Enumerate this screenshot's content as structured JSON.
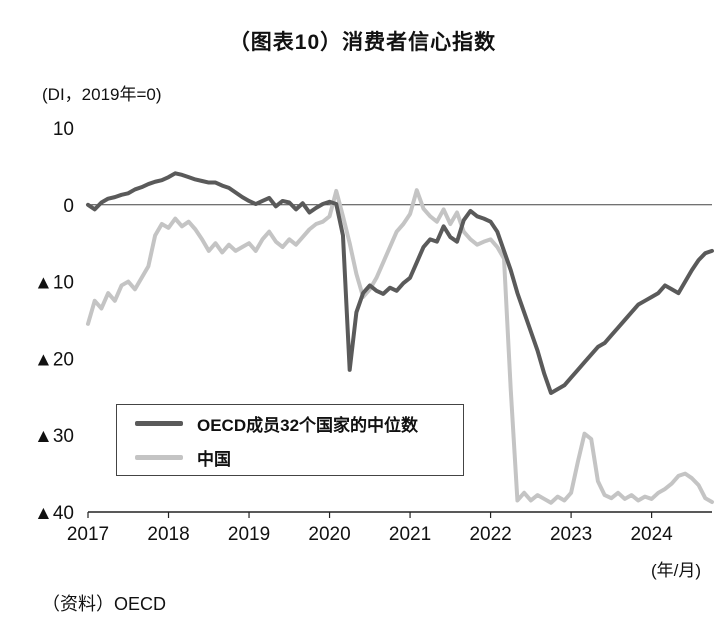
{
  "title": "（图表10）消费者信心指数",
  "y_axis_unit_label": "(DI，2019年=0)",
  "x_axis_unit_label": "(年/月)",
  "source": "（资料）OECD",
  "colors": {
    "oecd_line": "#5a5a5a",
    "china_line": "#c4c4c4",
    "axis": "#222222",
    "zero_line": "#444444",
    "text": "#111111"
  },
  "chart_data": {
    "type": "line",
    "title": "（图表10）消费者信心指数",
    "ylabel": "(DI，2019年=0)",
    "xlabel": "(年/月)",
    "x_frequency": "monthly",
    "x_range": "2017-01 to 2024-10",
    "ylim": [
      -40,
      10
    ],
    "grid": false,
    "zero_line": true,
    "legend_position": "lower-left box",
    "y_ticks": [
      {
        "value": 10,
        "label": "10"
      },
      {
        "value": 0,
        "label": "0"
      },
      {
        "value": -10,
        "label": "▲10"
      },
      {
        "value": -20,
        "label": "▲20"
      },
      {
        "value": -30,
        "label": "▲30"
      },
      {
        "value": -40,
        "label": "▲40"
      }
    ],
    "x_ticks": [
      {
        "label": "2017",
        "month_index": 0
      },
      {
        "label": "2018",
        "month_index": 12
      },
      {
        "label": "2019",
        "month_index": 24
      },
      {
        "label": "2020",
        "month_index": 36
      },
      {
        "label": "2021",
        "month_index": 48
      },
      {
        "label": "2022",
        "month_index": 60
      },
      {
        "label": "2023",
        "month_index": 72
      },
      {
        "label": "2024",
        "month_index": 84
      }
    ],
    "series": [
      {
        "name": "OECD成员32个国家的中位数",
        "color": "#5a5a5a",
        "data_name": "oecd-line",
        "values": [
          0.0,
          -0.6,
          0.3,
          0.8,
          1.0,
          1.3,
          1.5,
          2.0,
          2.3,
          2.7,
          3.0,
          3.2,
          3.6,
          4.1,
          3.9,
          3.6,
          3.3,
          3.1,
          2.9,
          2.9,
          2.5,
          2.2,
          1.6,
          1.0,
          0.5,
          0.1,
          0.5,
          0.9,
          -0.2,
          0.5,
          0.3,
          -0.6,
          0.2,
          -1.0,
          -0.4,
          0.1,
          0.4,
          0.1,
          -4.0,
          -21.5,
          -14.0,
          -11.5,
          -10.5,
          -11.2,
          -11.6,
          -10.8,
          -11.2,
          -10.2,
          -9.5,
          -7.5,
          -5.5,
          -4.5,
          -4.8,
          -2.8,
          -4.2,
          -4.8,
          -2.0,
          -0.8,
          -1.5,
          -1.8,
          -2.2,
          -3.5,
          -6.0,
          -8.5,
          -11.5,
          -14.0,
          -16.5,
          -19.0,
          -22.0,
          -24.5,
          -24.0,
          -23.5,
          -22.5,
          -21.5,
          -20.5,
          -19.5,
          -18.5,
          -18.0,
          -17.0,
          -16.0,
          -15.0,
          -14.0,
          -13.0,
          -12.5,
          -12.0,
          -11.5,
          -10.5,
          -11.0,
          -11.5,
          -10.0,
          -8.5,
          -7.2,
          -6.3,
          -6.0
        ]
      },
      {
        "name": "中国",
        "color": "#c4c4c4",
        "data_name": "china-line",
        "values": [
          -15.5,
          -12.5,
          -13.5,
          -11.5,
          -12.5,
          -10.5,
          -10.0,
          -11.0,
          -9.5,
          -8.0,
          -4.0,
          -2.5,
          -3.0,
          -1.8,
          -2.8,
          -2.2,
          -3.2,
          -4.5,
          -6.0,
          -5.0,
          -6.2,
          -5.2,
          -6.0,
          -5.5,
          -5.0,
          -6.0,
          -4.5,
          -3.5,
          -4.8,
          -5.5,
          -4.5,
          -5.2,
          -4.2,
          -3.2,
          -2.5,
          -2.2,
          -1.5,
          1.8,
          -1.5,
          -5.0,
          -9.0,
          -12.0,
          -11.0,
          -9.5,
          -7.5,
          -5.5,
          -3.5,
          -2.5,
          -1.2,
          1.9,
          -0.5,
          -1.5,
          -2.2,
          -0.6,
          -2.5,
          -1.0,
          -3.5,
          -4.5,
          -5.2,
          -4.8,
          -4.5,
          -5.5,
          -7.0,
          -24.0,
          -38.5,
          -37.5,
          -38.5,
          -37.8,
          -38.3,
          -38.8,
          -38.0,
          -38.5,
          -37.5,
          -33.5,
          -29.8,
          -30.5,
          -36.0,
          -37.8,
          -38.2,
          -37.5,
          -38.3,
          -37.8,
          -38.5,
          -38.0,
          -38.3,
          -37.5,
          -37.0,
          -36.3,
          -35.3,
          -35.0,
          -35.6,
          -36.5,
          -38.2,
          -38.7
        ]
      }
    ]
  }
}
